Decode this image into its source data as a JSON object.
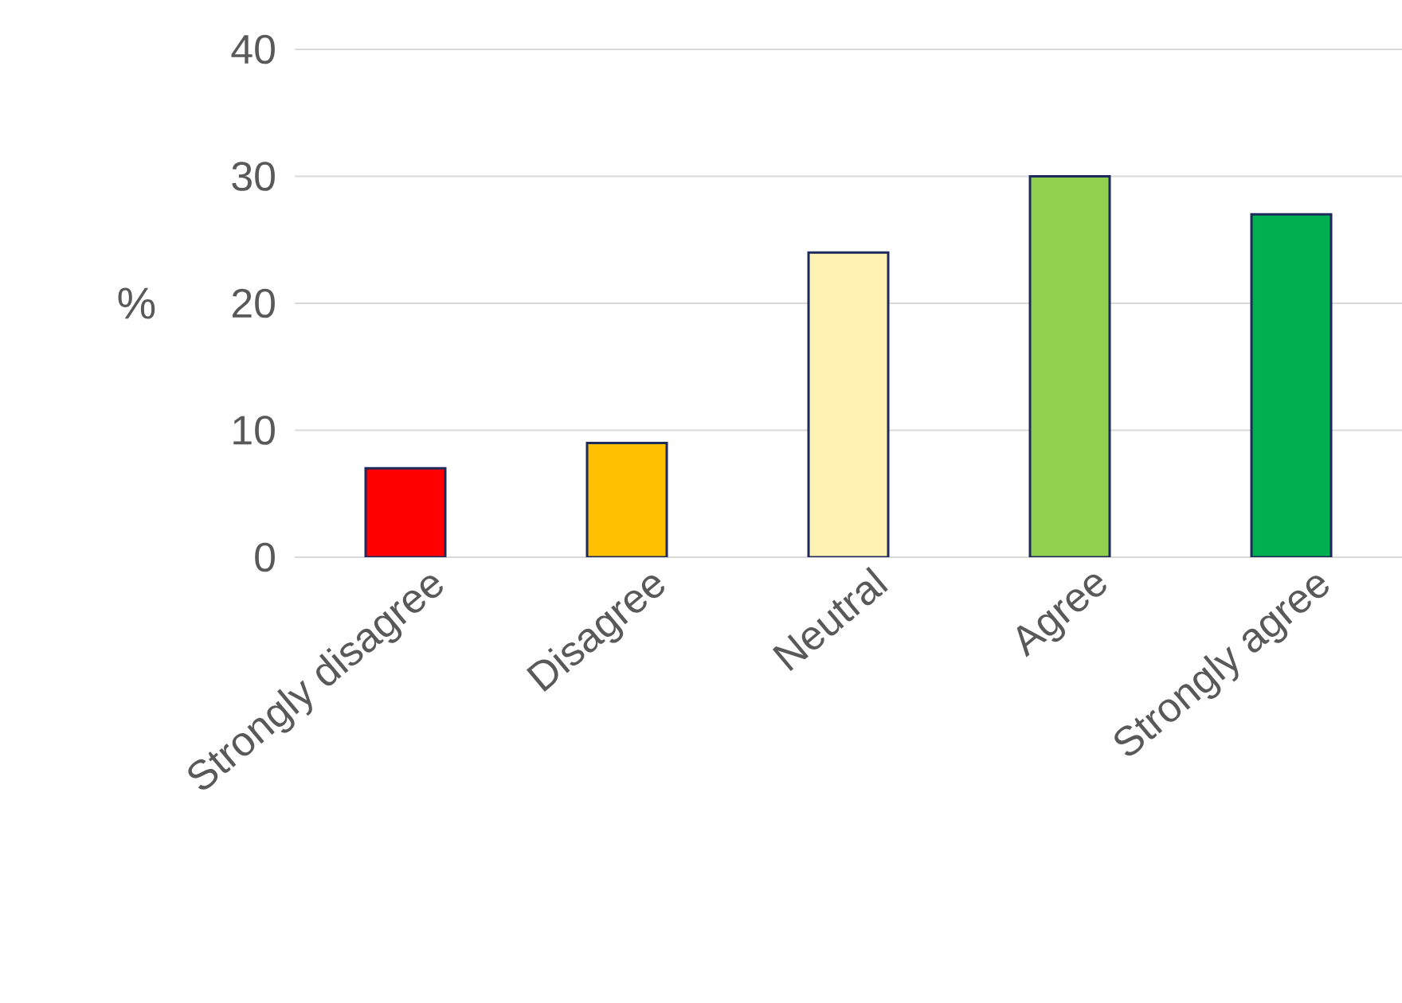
{
  "chart_data": {
    "type": "bar",
    "ylabel": "%",
    "categories": [
      "Strongly disagree",
      "Disagree",
      "Neutral",
      "Agree",
      "Strongly agree"
    ],
    "values": [
      7,
      9,
      24,
      30,
      27
    ],
    "colors": [
      "#ff0000",
      "#ffc000",
      "#fff2b3",
      "#92d050",
      "#00b050"
    ],
    "ylim": [
      0,
      40
    ],
    "yticks": [
      0,
      10,
      20,
      30,
      40
    ],
    "grid": "y"
  }
}
